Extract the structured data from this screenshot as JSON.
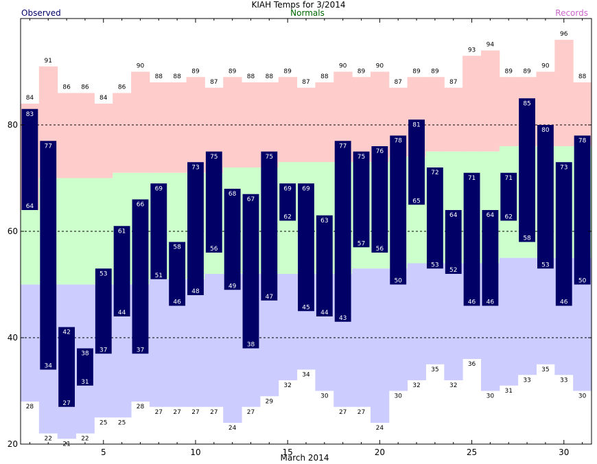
{
  "chart_data": {
    "type": "bar",
    "title": "KIAH Temps for 3/2014",
    "legend": {
      "observed": "Observed",
      "normals": "Normals",
      "records": "Records"
    },
    "xlabel": "March 2014",
    "ylabel": "",
    "ylim": [
      20,
      100
    ],
    "xlim": [
      1,
      31
    ],
    "grid": "dashed horizontal at 40, 60, 80",
    "y_ticks": [
      20,
      40,
      60,
      80
    ],
    "x_ticks": [
      5,
      10,
      15,
      20,
      25,
      30
    ],
    "days": [
      1,
      2,
      3,
      4,
      5,
      6,
      7,
      8,
      9,
      10,
      11,
      12,
      13,
      14,
      15,
      16,
      17,
      18,
      19,
      20,
      21,
      22,
      23,
      24,
      25,
      26,
      27,
      28,
      29,
      30,
      31
    ],
    "observed_high": [
      83,
      77,
      42,
      38,
      53,
      61,
      66,
      69,
      58,
      73,
      75,
      68,
      67,
      75,
      69,
      69,
      63,
      77,
      75,
      76,
      78,
      81,
      72,
      64,
      71,
      64,
      71,
      85,
      80,
      73,
      78
    ],
    "observed_low": [
      64,
      34,
      27,
      31,
      37,
      44,
      37,
      51,
      46,
      48,
      56,
      49,
      38,
      47,
      62,
      45,
      44,
      43,
      57,
      56,
      50,
      65,
      53,
      52,
      46,
      46,
      62,
      58,
      53,
      46,
      50
    ],
    "normal_high": [
      64,
      70,
      70,
      70,
      70,
      71,
      71,
      71,
      71,
      71,
      71,
      72,
      72,
      72,
      73,
      73,
      73,
      73,
      73,
      73,
      74,
      74,
      75,
      75,
      75,
      75,
      76,
      76,
      76,
      76,
      76
    ],
    "normal_low": [
      50,
      50,
      50,
      50,
      50,
      50,
      50,
      51,
      51,
      51,
      52,
      52,
      52,
      52,
      52,
      52,
      52,
      52,
      53,
      53,
      53,
      54,
      54,
      54,
      54,
      54,
      55,
      55,
      55,
      55,
      55
    ],
    "record_high": [
      84,
      91,
      86,
      86,
      84,
      86,
      90,
      88,
      88,
      89,
      87,
      89,
      88,
      88,
      89,
      87,
      88,
      90,
      89,
      90,
      87,
      89,
      89,
      87,
      93,
      94,
      89,
      89,
      90,
      96,
      88
    ],
    "record_low": [
      28,
      22,
      21,
      22,
      25,
      25,
      28,
      27,
      27,
      27,
      27,
      24,
      27,
      29,
      32,
      34,
      30,
      27,
      27,
      24,
      30,
      32,
      35,
      32,
      36,
      30,
      31,
      33,
      35,
      33,
      30
    ],
    "colors": {
      "record_band": "#ffcccc",
      "normal_band": "#ccffcc",
      "cool_band": "#ccccff",
      "observed_bar": "#000066",
      "observed_text": "#000066",
      "normals_text": "#006600",
      "records_text": "#cc66cc",
      "grid": "#000000"
    }
  }
}
